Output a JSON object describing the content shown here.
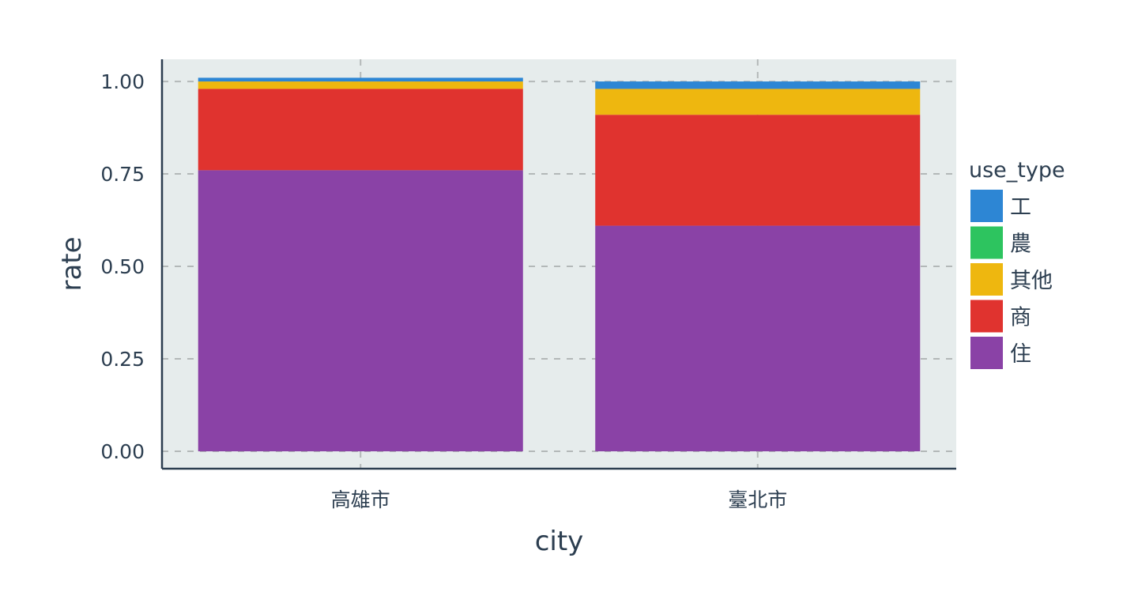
{
  "chart_data": {
    "type": "bar",
    "stacked": true,
    "categories": [
      "高雄市",
      "臺北市"
    ],
    "series": [
      {
        "name": "住",
        "color": "#8a42a6",
        "values": [
          0.76,
          0.61
        ]
      },
      {
        "name": "商",
        "color": "#e0332f",
        "values": [
          0.22,
          0.3
        ]
      },
      {
        "name": "其他",
        "color": "#eeb70f",
        "values": [
          0.02,
          0.07
        ]
      },
      {
        "name": "農",
        "color": "#2dc45f",
        "values": [
          0.0,
          0.0
        ]
      },
      {
        "name": "工",
        "color": "#2d86d4",
        "values": [
          0.01,
          0.02
        ]
      }
    ],
    "legend_order": [
      "工",
      "農",
      "其他",
      "商",
      "住"
    ],
    "xlabel": "city",
    "ylabel": "rate",
    "legend_title": "use_type",
    "ylim": [
      -0.047,
      1.06
    ],
    "yticks": [
      0.0,
      0.25,
      0.5,
      0.75,
      1.0
    ],
    "ytick_labels": [
      "0.00",
      "0.25",
      "0.50",
      "0.75",
      "1.00"
    ],
    "grid": true,
    "legend_position": "right",
    "panel_color": "#e6ecec",
    "grid_color": "#b3b8b8",
    "axis_color": "#2c3e50"
  }
}
